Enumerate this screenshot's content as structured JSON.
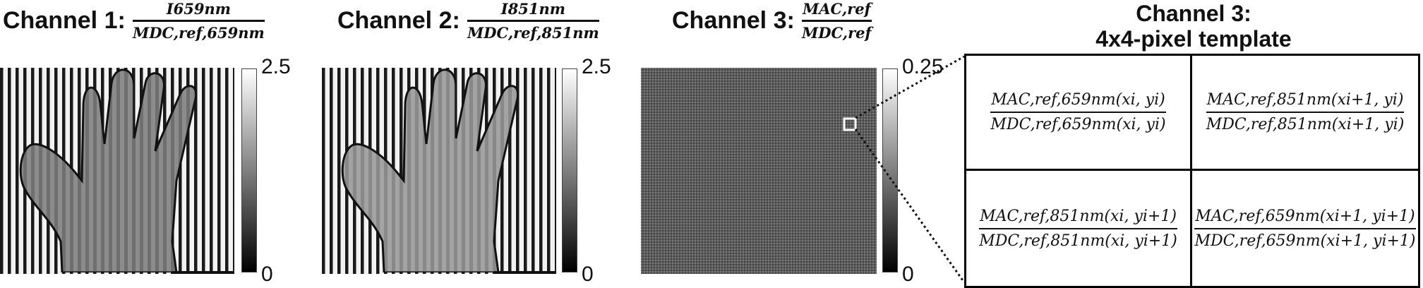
{
  "channel1": {
    "label": "Channel 1:",
    "numerator": "I659nm",
    "denominator": "MDC,ref,659nm",
    "colorbar_max": "2.5",
    "colorbar_min": "0"
  },
  "channel2": {
    "label": "Channel 2:",
    "numerator": "I851nm",
    "denominator": "MDC,ref,851nm",
    "colorbar_max": "2.5",
    "colorbar_min": "0"
  },
  "channel3": {
    "label": "Channel 3:",
    "numerator": "MAC,ref",
    "denominator": "MDC,ref",
    "colorbar_max": "0.25",
    "colorbar_min": "0"
  },
  "template": {
    "title_line1": "Channel 3:",
    "title_line2": "4x4-pixel template",
    "cells": [
      {
        "numerator": "MAC,ref,659nm(xi, yi)",
        "denominator": "MDC,ref,659nm(xi, yi)"
      },
      {
        "numerator": "MAC,ref,851nm(xi+1, yi)",
        "denominator": "MDC,ref,851nm(xi+1, yi)"
      },
      {
        "numerator": "MAC,ref,851nm(xi, yi+1)",
        "denominator": "MDC,ref,851nm(xi, yi+1)"
      },
      {
        "numerator": "MAC,ref,659nm(xi+1, yi+1)",
        "denominator": "MDC,ref,659nm(xi+1, yi+1)"
      }
    ]
  },
  "colors": {
    "text": "#111111",
    "background": "#ffffff"
  }
}
